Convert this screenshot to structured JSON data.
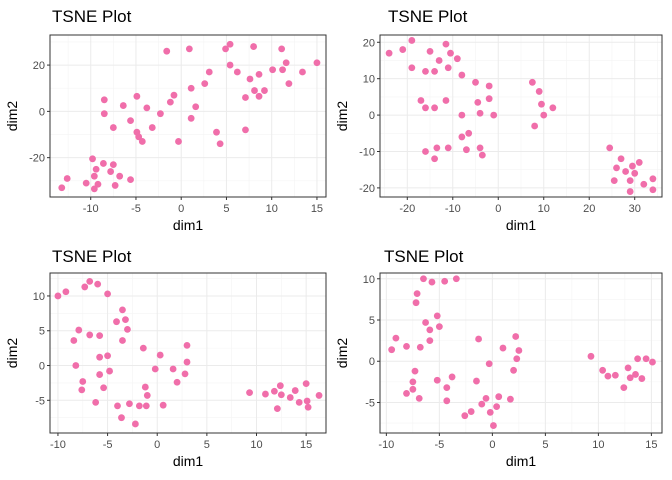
{
  "chart_data": [
    {
      "type": "scatter",
      "title": "TSNE Plot",
      "xlabel": "dim1",
      "ylabel": "dim2",
      "xlim": [
        -14.5,
        16
      ],
      "ylim": [
        -37,
        33
      ],
      "xticks": [
        -10,
        -5,
        0,
        5,
        10,
        15
      ],
      "yticks": [
        -20,
        0,
        20
      ],
      "grid": true,
      "point_color": "#f06eaa",
      "points": [
        {
          "x": -13.2,
          "y": -33
        },
        {
          "x": -12.6,
          "y": -29
        },
        {
          "x": -10.5,
          "y": -31
        },
        {
          "x": -9.6,
          "y": -33.5
        },
        {
          "x": -9.6,
          "y": -28
        },
        {
          "x": -9.8,
          "y": -20.5
        },
        {
          "x": -9.4,
          "y": -25
        },
        {
          "x": -9.2,
          "y": -31.5
        },
        {
          "x": -8.6,
          "y": -22.5
        },
        {
          "x": -7.8,
          "y": -26
        },
        {
          "x": -7.3,
          "y": -32
        },
        {
          "x": -6.8,
          "y": -28
        },
        {
          "x": -5.6,
          "y": -29.5
        },
        {
          "x": -7.5,
          "y": -23
        },
        {
          "x": -8.5,
          "y": -1
        },
        {
          "x": -8.5,
          "y": 5
        },
        {
          "x": -7.5,
          "y": -7
        },
        {
          "x": -6.4,
          "y": 2.5
        },
        {
          "x": -5.6,
          "y": -4
        },
        {
          "x": -4.9,
          "y": 6.5
        },
        {
          "x": -4.7,
          "y": -11
        },
        {
          "x": -4.3,
          "y": -13
        },
        {
          "x": -3.2,
          "y": -7
        },
        {
          "x": -3.8,
          "y": 1.5
        },
        {
          "x": -4.9,
          "y": -9
        },
        {
          "x": -2.3,
          "y": -1
        },
        {
          "x": -1.6,
          "y": 26
        },
        {
          "x": -1.2,
          "y": 4
        },
        {
          "x": -0.8,
          "y": 7
        },
        {
          "x": -0.3,
          "y": -13
        },
        {
          "x": 0.9,
          "y": 27
        },
        {
          "x": 1.1,
          "y": 10
        },
        {
          "x": 1.1,
          "y": -3
        },
        {
          "x": 1.6,
          "y": 2
        },
        {
          "x": 2.6,
          "y": 12
        },
        {
          "x": 3.1,
          "y": 17
        },
        {
          "x": 3.9,
          "y": -9
        },
        {
          "x": 4.3,
          "y": -14
        },
        {
          "x": 4.9,
          "y": 27
        },
        {
          "x": 5.4,
          "y": 29
        },
        {
          "x": 5.4,
          "y": 20
        },
        {
          "x": 6.2,
          "y": 17
        },
        {
          "x": 7.1,
          "y": -8
        },
        {
          "x": 7.1,
          "y": 6
        },
        {
          "x": 7.6,
          "y": 14
        },
        {
          "x": 8.0,
          "y": 28
        },
        {
          "x": 8.1,
          "y": 9
        },
        {
          "x": 8.6,
          "y": 16
        },
        {
          "x": 9.2,
          "y": 9
        },
        {
          "x": 10.1,
          "y": 18
        },
        {
          "x": 11.1,
          "y": 27
        },
        {
          "x": 11.2,
          "y": 18
        },
        {
          "x": 11.6,
          "y": 21
        },
        {
          "x": 11.9,
          "y": 12
        },
        {
          "x": 13.4,
          "y": 17
        },
        {
          "x": 15.0,
          "y": 21
        },
        {
          "x": 8.6,
          "y": 6.5
        }
      ]
    },
    {
      "type": "scatter",
      "title": "TSNE Plot",
      "xlabel": "dim1",
      "ylabel": "dim2",
      "xlim": [
        -26,
        36
      ],
      "ylim": [
        -22.5,
        22
      ],
      "xticks": [
        -20,
        -10,
        0,
        10,
        20,
        30
      ],
      "yticks": [
        -20,
        -10,
        0,
        10,
        20
      ],
      "grid": true,
      "point_color": "#f06eaa",
      "points": [
        {
          "x": -24,
          "y": 17
        },
        {
          "x": -21,
          "y": 18
        },
        {
          "x": -19,
          "y": 20.5
        },
        {
          "x": -19,
          "y": 13
        },
        {
          "x": -16,
          "y": 12
        },
        {
          "x": -15,
          "y": 17.5
        },
        {
          "x": -14,
          "y": 12
        },
        {
          "x": -13,
          "y": 15
        },
        {
          "x": -11.5,
          "y": 19.5
        },
        {
          "x": -11,
          "y": 13
        },
        {
          "x": -10.5,
          "y": 17
        },
        {
          "x": -9,
          "y": 15.5
        },
        {
          "x": -8,
          "y": 11
        },
        {
          "x": -5,
          "y": 9
        },
        {
          "x": -17,
          "y": 4
        },
        {
          "x": -16,
          "y": 2
        },
        {
          "x": -14,
          "y": 2
        },
        {
          "x": -11.5,
          "y": 4
        },
        {
          "x": -16,
          "y": -10
        },
        {
          "x": -13.5,
          "y": -9
        },
        {
          "x": -14,
          "y": -12
        },
        {
          "x": -11,
          "y": -9
        },
        {
          "x": -8,
          "y": -6
        },
        {
          "x": -7,
          "y": -9.5
        },
        {
          "x": -6.5,
          "y": -5
        },
        {
          "x": -4.5,
          "y": 3.5
        },
        {
          "x": -4,
          "y": 0.5
        },
        {
          "x": -4,
          "y": -9
        },
        {
          "x": -3.5,
          "y": -11
        },
        {
          "x": -2,
          "y": 8
        },
        {
          "x": -2,
          "y": 4.5
        },
        {
          "x": -1,
          "y": 0
        },
        {
          "x": -8,
          "y": 0
        },
        {
          "x": 7.5,
          "y": 9
        },
        {
          "x": 8,
          "y": -3
        },
        {
          "x": 9,
          "y": 6.5
        },
        {
          "x": 9.5,
          "y": 3
        },
        {
          "x": 10,
          "y": 0
        },
        {
          "x": 12,
          "y": 2
        },
        {
          "x": 24.5,
          "y": -9
        },
        {
          "x": 25.5,
          "y": -18
        },
        {
          "x": 26,
          "y": -14.5
        },
        {
          "x": 27,
          "y": -12
        },
        {
          "x": 28,
          "y": -15.5
        },
        {
          "x": 29,
          "y": -18
        },
        {
          "x": 29,
          "y": -21
        },
        {
          "x": 30,
          "y": -16
        },
        {
          "x": 31,
          "y": -13
        },
        {
          "x": 32,
          "y": -19
        },
        {
          "x": 34,
          "y": -17.5
        },
        {
          "x": 34,
          "y": -20.5
        },
        {
          "x": 29.5,
          "y": -14
        }
      ]
    },
    {
      "type": "scatter",
      "title": "TSNE Plot",
      "xlabel": "dim1",
      "ylabel": "dim2",
      "xlim": [
        -10.8,
        17
      ],
      "ylim": [
        -9.7,
        13.3
      ],
      "xticks": [
        -10,
        -5,
        0,
        5,
        10,
        15
      ],
      "yticks": [
        -5,
        0,
        5,
        10
      ],
      "grid": true,
      "point_color": "#f06eaa",
      "points": [
        {
          "x": -10,
          "y": 10
        },
        {
          "x": -9.2,
          "y": 10.6
        },
        {
          "x": -7.3,
          "y": 11.3
        },
        {
          "x": -6.8,
          "y": 12.1
        },
        {
          "x": -6,
          "y": 11.7
        },
        {
          "x": -5,
          "y": 10.3
        },
        {
          "x": -7.9,
          "y": 5.1
        },
        {
          "x": -8.4,
          "y": 3.6
        },
        {
          "x": -6.8,
          "y": 4.4
        },
        {
          "x": -5.8,
          "y": 4.3
        },
        {
          "x": -4.1,
          "y": 6.3
        },
        {
          "x": -3.5,
          "y": 8
        },
        {
          "x": -3.2,
          "y": 6.6
        },
        {
          "x": -3,
          "y": 5.2
        },
        {
          "x": -1.4,
          "y": 2.5
        },
        {
          "x": -3.5,
          "y": 3.6
        },
        {
          "x": -8.2,
          "y": 0
        },
        {
          "x": -5.8,
          "y": 1.2
        },
        {
          "x": -5,
          "y": 1.4
        },
        {
          "x": -7.5,
          "y": -2.3
        },
        {
          "x": -7.6,
          "y": -3.5
        },
        {
          "x": -5.8,
          "y": -1.3
        },
        {
          "x": -5.4,
          "y": -3.2
        },
        {
          "x": -4.8,
          "y": -0.8
        },
        {
          "x": -6.2,
          "y": -5.3
        },
        {
          "x": -4,
          "y": -5.8
        },
        {
          "x": -2.8,
          "y": -5.5
        },
        {
          "x": -3.6,
          "y": -7.5
        },
        {
          "x": -2.2,
          "y": -8.4
        },
        {
          "x": -1.8,
          "y": -5.8
        },
        {
          "x": -1.1,
          "y": -5.8
        },
        {
          "x": -1.2,
          "y": -3.1
        },
        {
          "x": -1,
          "y": -4.3
        },
        {
          "x": -0.2,
          "y": -0.5
        },
        {
          "x": 0.3,
          "y": 1.5
        },
        {
          "x": 0.6,
          "y": -5.7
        },
        {
          "x": 1.6,
          "y": -0.5
        },
        {
          "x": 2,
          "y": -2.4
        },
        {
          "x": 3,
          "y": 0.5
        },
        {
          "x": 3,
          "y": 2.9
        },
        {
          "x": 2.8,
          "y": -1.2
        },
        {
          "x": 9.3,
          "y": -3.9
        },
        {
          "x": 10.9,
          "y": -4.1
        },
        {
          "x": 11.8,
          "y": -3.7
        },
        {
          "x": 12.1,
          "y": -6.2
        },
        {
          "x": 12.4,
          "y": -2.9
        },
        {
          "x": 12.5,
          "y": -4.2
        },
        {
          "x": 13.4,
          "y": -4.6
        },
        {
          "x": 13.9,
          "y": -3.6
        },
        {
          "x": 14.3,
          "y": -5.3
        },
        {
          "x": 15,
          "y": -2.6
        },
        {
          "x": 15.1,
          "y": -5.1
        },
        {
          "x": 15.2,
          "y": -6
        },
        {
          "x": 16.3,
          "y": -4.3
        }
      ]
    },
    {
      "type": "scatter",
      "title": "TSNE Plot",
      "xlabel": "dim1",
      "ylabel": "dim2",
      "xlim": [
        -10.6,
        16
      ],
      "ylim": [
        -8.7,
        10.7
      ],
      "xticks": [
        -10,
        -5,
        0,
        5,
        10,
        15
      ],
      "yticks": [
        -5,
        0,
        5,
        10
      ],
      "grid": true,
      "point_color": "#f06eaa",
      "points": [
        {
          "x": -9.5,
          "y": 1.4
        },
        {
          "x": -9.1,
          "y": 2.8
        },
        {
          "x": -8.1,
          "y": 1.8
        },
        {
          "x": -7.2,
          "y": 7.1
        },
        {
          "x": -7.1,
          "y": 8.2
        },
        {
          "x": -6.5,
          "y": 10
        },
        {
          "x": -5.7,
          "y": 9.6
        },
        {
          "x": -4.5,
          "y": 9.7
        },
        {
          "x": -3.4,
          "y": 10
        },
        {
          "x": -6.3,
          "y": 4.7
        },
        {
          "x": -5.9,
          "y": 3.8
        },
        {
          "x": -5.2,
          "y": 5.5
        },
        {
          "x": -5,
          "y": 4.2
        },
        {
          "x": -5.9,
          "y": 2.5
        },
        {
          "x": -6.8,
          "y": 1.7
        },
        {
          "x": -7.5,
          "y": -2.5
        },
        {
          "x": -7.5,
          "y": -3.4
        },
        {
          "x": -8.1,
          "y": -3.9
        },
        {
          "x": -7.3,
          "y": -1.2
        },
        {
          "x": -6.9,
          "y": -4.5
        },
        {
          "x": -5.2,
          "y": -2.3
        },
        {
          "x": -3.8,
          "y": -1.9
        },
        {
          "x": -4.3,
          "y": -3.2
        },
        {
          "x": -2.6,
          "y": -6.6
        },
        {
          "x": -2,
          "y": -6.1
        },
        {
          "x": -1.5,
          "y": -2.4
        },
        {
          "x": -1.3,
          "y": 2.7
        },
        {
          "x": -1,
          "y": -5.2
        },
        {
          "x": -0.6,
          "y": -4.5
        },
        {
          "x": -0.2,
          "y": -6.2
        },
        {
          "x": 0.1,
          "y": -7.8
        },
        {
          "x": 0.4,
          "y": -5.5
        },
        {
          "x": -0.3,
          "y": -0.3
        },
        {
          "x": 0.6,
          "y": -4.3
        },
        {
          "x": 1,
          "y": 1.6
        },
        {
          "x": 1.7,
          "y": -4.6
        },
        {
          "x": 2,
          "y": -1.1
        },
        {
          "x": 2.3,
          "y": 0.3
        },
        {
          "x": 2.2,
          "y": 3
        },
        {
          "x": 2.5,
          "y": 1.3
        },
        {
          "x": -4.3,
          "y": -4.8
        },
        {
          "x": 9.3,
          "y": 0.6
        },
        {
          "x": 10.4,
          "y": -1.1
        },
        {
          "x": 10.9,
          "y": -1.8
        },
        {
          "x": 11.6,
          "y": -1.7
        },
        {
          "x": 12.4,
          "y": -3.2
        },
        {
          "x": 12.8,
          "y": -0.8
        },
        {
          "x": 13.5,
          "y": -1.6
        },
        {
          "x": 13.7,
          "y": 0.3
        },
        {
          "x": 14.1,
          "y": -2.1
        },
        {
          "x": 14.5,
          "y": 0.3
        },
        {
          "x": 15.1,
          "y": -0.1
        },
        {
          "x": 13,
          "y": -2
        }
      ]
    }
  ]
}
